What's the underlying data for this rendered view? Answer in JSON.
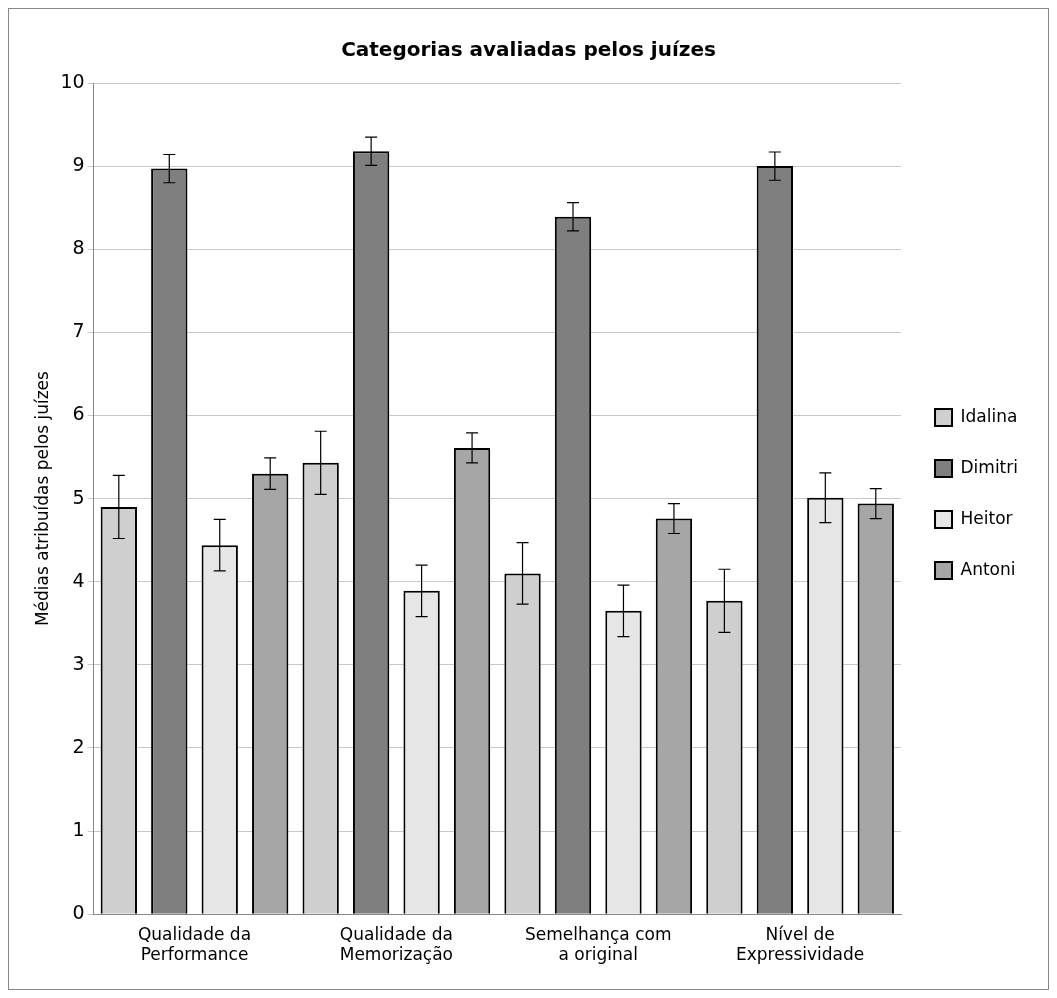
{
  "chart_data": {
    "type": "bar",
    "title": "Categorias avaliadas pelos juízes",
    "ylabel": "Médias atribuídas pelos juízes",
    "categories": [
      "Qualidade da Performance",
      "Qualidade da Memorização",
      "Semelhança com a original",
      "Nível de Expressividade"
    ],
    "series": [
      {
        "name": "Idalina",
        "color": "#cfcfcf",
        "values": [
          4.9,
          5.43,
          4.1,
          3.77
        ],
        "errors": [
          0.38,
          0.38,
          0.37,
          0.38
        ]
      },
      {
        "name": "Dimitri",
        "color": "#7f7f7f",
        "values": [
          8.97,
          9.18,
          8.39,
          9.0
        ],
        "errors": [
          0.17,
          0.17,
          0.17,
          0.17
        ]
      },
      {
        "name": "Heitor",
        "color": "#e6e6e6",
        "values": [
          4.44,
          3.89,
          3.65,
          5.01
        ],
        "errors": [
          0.31,
          0.31,
          0.31,
          0.3
        ]
      },
      {
        "name": "Antoni",
        "color": "#a6a6a6",
        "values": [
          5.3,
          5.61,
          4.76,
          4.94
        ],
        "errors": [
          0.19,
          0.18,
          0.18,
          0.18
        ]
      }
    ],
    "ylim": [
      0,
      10
    ],
    "yticks": [
      0,
      1,
      2,
      3,
      4,
      5,
      6,
      7,
      8,
      9,
      10
    ],
    "grid": "y",
    "legend": "right"
  }
}
